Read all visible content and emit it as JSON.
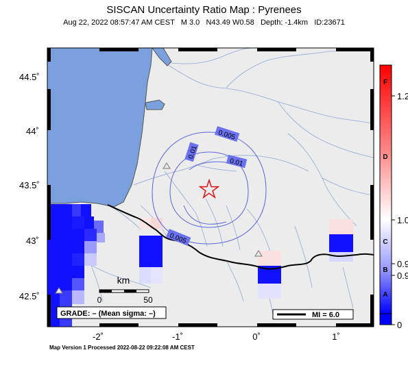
{
  "title": "SISCAN Uncertainty Ratio Map : Pyrenees",
  "subtitle": {
    "datetime": "Aug 22, 2022 08:57:47 AM CEST",
    "magnitude": "M 3.0",
    "location": "N43.49 W0.58",
    "depth": "Depth: -1.4km",
    "id": "ID:23671"
  },
  "axes": {
    "y_ticks": [
      "44.5˚",
      "44˚",
      "43.5˚",
      "43˚",
      "42.5˚"
    ],
    "x_ticks": [
      "-2˚",
      "-1˚",
      "0˚",
      "1˚"
    ]
  },
  "contours": [
    "0.005",
    "0.01",
    "0.01",
    "0.005"
  ],
  "scale_bar": {
    "unit": "km",
    "zero": "0",
    "max": "50"
  },
  "grade_box": "GRADE: – (Mean sigma: –)",
  "mi_legend": "MI = 6.0",
  "colorbar": {
    "letters": [
      "F",
      "D",
      "C",
      "B",
      "A"
    ],
    "values": [
      "1.2",
      "1.0",
      "0.9",
      "0.9",
      "0"
    ],
    "top_color": "#ff0000",
    "bottom_color": "#0000ff"
  },
  "colors": {
    "sea": "#7aa1dd",
    "land": "#ececec",
    "rivers": "#8fa9d6",
    "contour": "#5a63e0",
    "epicenter": "#dd1111",
    "high_ratio_blue": "#1111ff"
  },
  "footer": "Map Version 1 Processed 2022-08-22 09:22:08 AM CEST"
}
